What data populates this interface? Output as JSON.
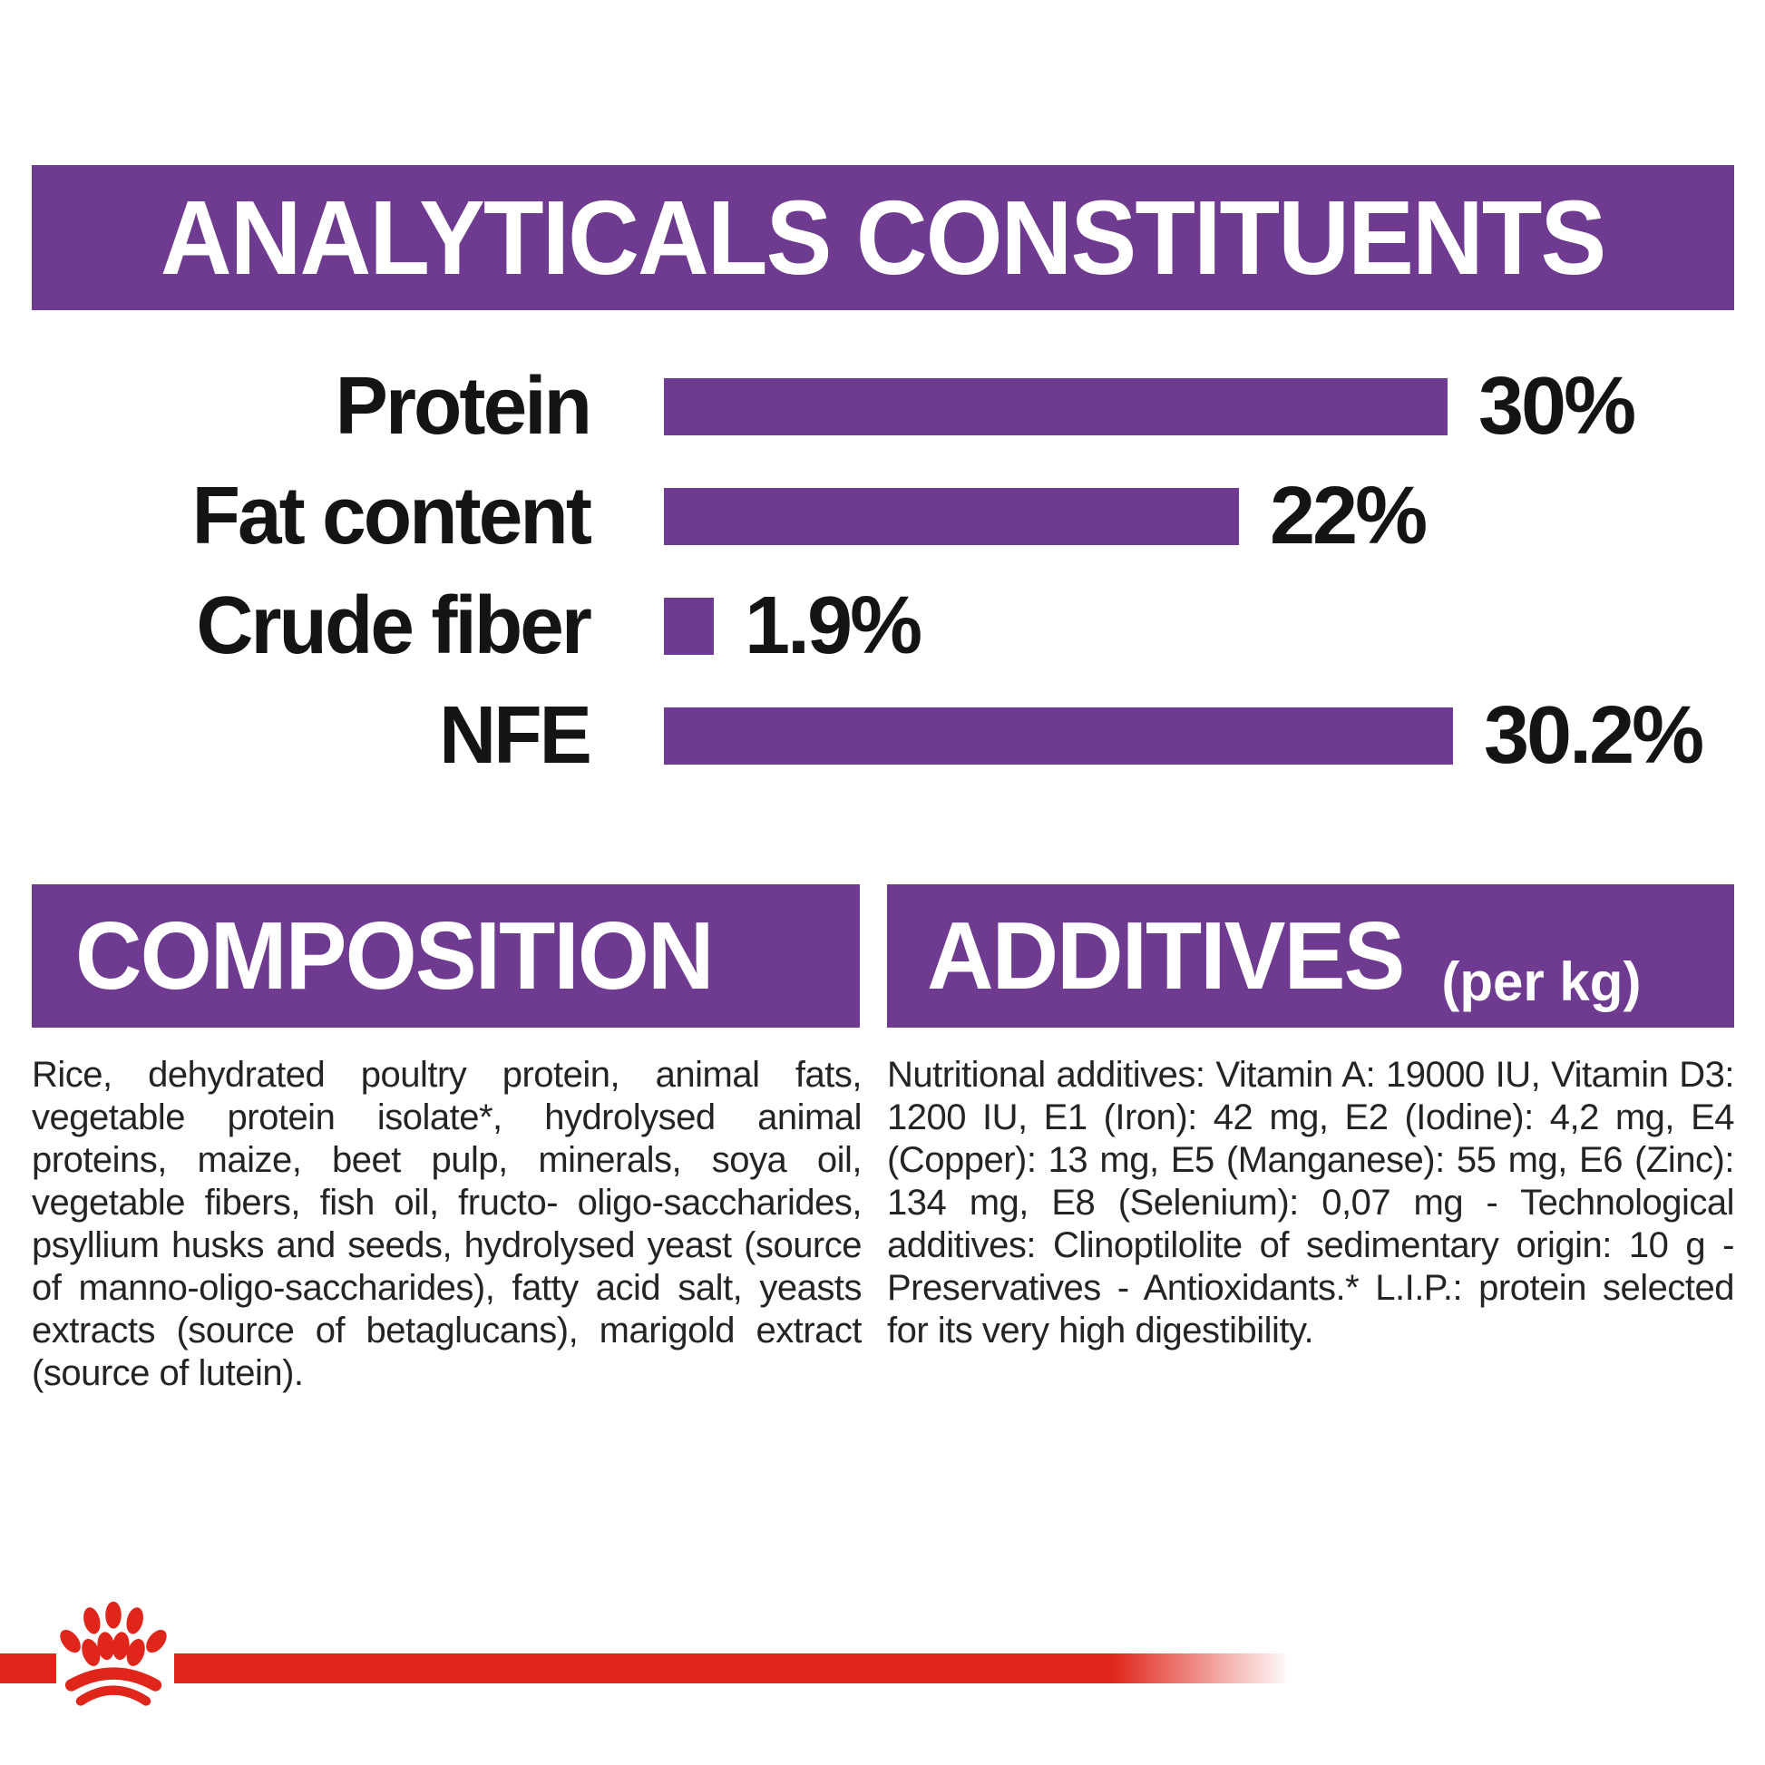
{
  "colors": {
    "purple": "#6e3b90",
    "red": "#e0261b",
    "heading_text": "#ffffff",
    "chart_text": "#141414",
    "body_text": "#242424",
    "background": "#ffffff"
  },
  "header": {
    "title": "ANALYTICALS CONSTITUENTS"
  },
  "chart_data": {
    "type": "bar",
    "orientation": "horizontal",
    "title": "ANALYTICALS CONSTITUENTS",
    "categories": [
      "Protein",
      "Fat content",
      "Crude fiber",
      "NFE"
    ],
    "values": [
      30,
      22,
      1.9,
      30.2
    ],
    "value_labels": [
      "30%",
      "22%",
      "1.9%",
      "30.2%"
    ],
    "unit": "%",
    "xlim": [
      0,
      30.2
    ],
    "bar_color": "#6e3b90",
    "grid": "off",
    "legend": "none"
  },
  "sections": {
    "composition": {
      "title": "COMPOSITION",
      "body": "Rice, dehydrated poultry protein, animal fats, vegetable protein isolate*, hydrolysed animal proteins, maize, beet pulp, minerals, soya oil, vegetable fibers, fish oil, fructo- oligo-saccharides, psyllium husks and seeds, hydrolysed yeast (source of manno-oligo-saccharides), fatty acid salt, yeasts extracts (source of betaglucans), marigold extract (source of lutein)."
    },
    "additives": {
      "title": "ADDITIVES",
      "title_suffix": "(per kg)",
      "body": "Nutritional additives: Vitamin A: 19000 IU, Vitamin D3: 1200 IU, E1 (Iron): 42 mg, E2 (Iodine): 4,2 mg, E4 (Copper): 13 mg, E5 (Manganese): 55 mg, E6 (Zinc): 134 mg, E8 (Selenium): 0,07 mg - Technological additives: Clinoptilolite of sedimentary origin: 10 g - Preservatives - Antioxidants.* L.I.P.: protein selected for its very high digestibility."
    }
  },
  "footer": {
    "logo_name": "royal-canin-paw-crown"
  }
}
